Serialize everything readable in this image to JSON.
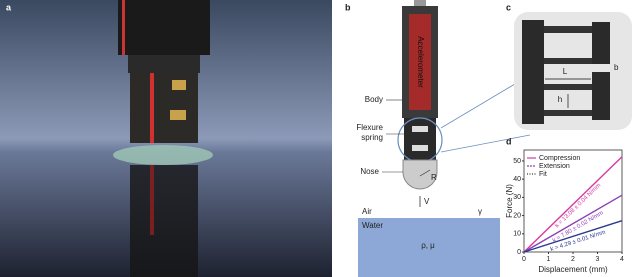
{
  "panel_a": {
    "label": "a"
  },
  "panel_b": {
    "label": "b",
    "accelerometer": "Accelerometer",
    "body": "Body",
    "flexure_line1": "Flexure",
    "flexure_line2": "spring",
    "nose": "Nose",
    "radius": "R",
    "velocity": "V",
    "air": "Air",
    "surface_tension": "γ",
    "water": "Water",
    "fluid_props": "ρ, μ"
  },
  "panel_c": {
    "label": "c",
    "length": "L",
    "width": "b",
    "height": "h"
  },
  "chart_data": {
    "type": "line",
    "panel_label": "d",
    "x_label": "Displacement (mm)",
    "y_label": "Force (N)",
    "legend": [
      "Compression",
      "Extension",
      "Fit"
    ],
    "series": [
      {
        "name": "k = 13.08 ± 0.04 N/mm",
        "color": "#d63a9f",
        "x": [
          0,
          4
        ],
        "values": [
          0,
          52.3
        ]
      },
      {
        "name": "k = 7.80 ± 0.02 N/mm",
        "color": "#8b3fb5",
        "x": [
          0,
          4
        ],
        "values": [
          0,
          31.2
        ]
      },
      {
        "name": "k = 4.29 ± 0.01 N/mm",
        "color": "#2b3b8c",
        "x": [
          0,
          4
        ],
        "values": [
          0,
          17.2
        ]
      }
    ],
    "xlim": [
      0,
      4
    ],
    "xticks": [
      0,
      1,
      2,
      3,
      4
    ],
    "ylim": [
      0,
      56
    ],
    "yticks": [
      0,
      10,
      20,
      30,
      40,
      50
    ]
  }
}
